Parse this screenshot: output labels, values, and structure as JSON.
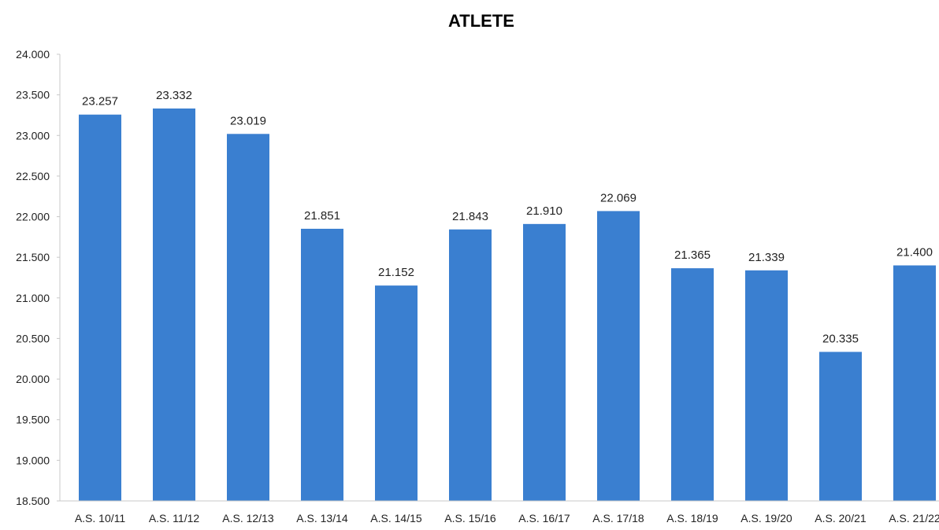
{
  "chart_data": {
    "type": "bar",
    "title": "ATLETE",
    "xlabel": "",
    "ylabel": "",
    "categories": [
      "A.S. 10/11",
      "A.S. 11/12",
      "A.S. 12/13",
      "A.S. 13/14",
      "A.S. 14/15",
      "A.S. 15/16",
      "A.S. 16/17",
      "A.S. 17/18",
      "A.S. 18/19",
      "A.S. 19/20",
      "A.S. 20/21",
      "A.S. 21/22"
    ],
    "values": [
      23257,
      23332,
      23019,
      21851,
      21152,
      21843,
      21910,
      22069,
      21365,
      21339,
      20335,
      21400
    ],
    "value_labels": [
      "23.257",
      "23.332",
      "23.019",
      "21.851",
      "21.152",
      "21.843",
      "21.910",
      "22.069",
      "21.365",
      "21.339",
      "20.335",
      "21.400"
    ],
    "ylim": [
      18500,
      24000
    ],
    "y_ticks": [
      18500,
      19000,
      19500,
      20000,
      20500,
      21000,
      21500,
      22000,
      22500,
      23000,
      23500,
      24000
    ],
    "y_tick_labels": [
      "18.500",
      "19.000",
      "19.500",
      "20.000",
      "20.500",
      "21.000",
      "21.500",
      "22.000",
      "22.500",
      "23.000",
      "23.500",
      "24.000"
    ],
    "grid": false,
    "legend": "none",
    "bar_color": "#3a7fd0"
  }
}
